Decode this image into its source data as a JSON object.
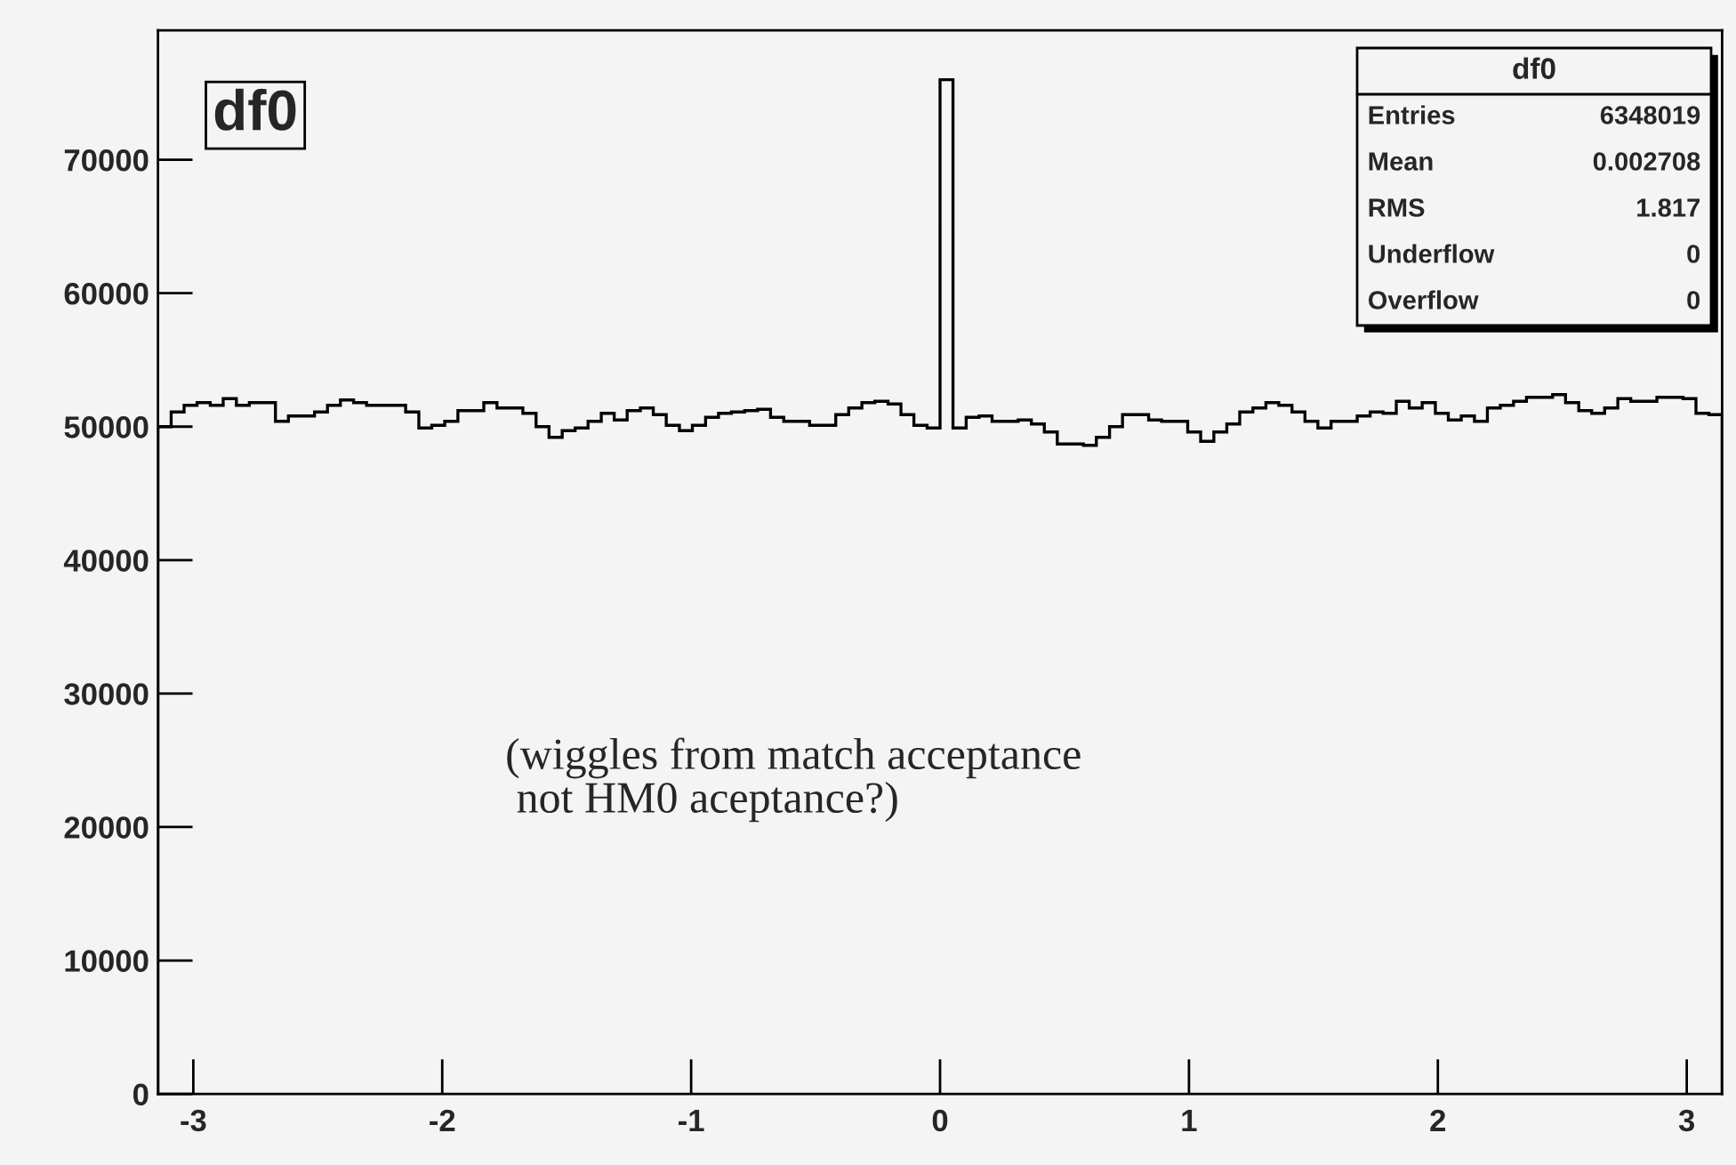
{
  "chart_data": {
    "type": "histogram",
    "title": "df0",
    "bins": [
      -3.142,
      -3.089,
      -3.037,
      -2.985,
      -2.932,
      -2.88,
      -2.827,
      -2.775,
      -2.723,
      -2.67,
      -2.618,
      -2.566,
      -2.513,
      -2.461,
      -2.409,
      -2.356,
      -2.304,
      -2.251,
      -2.199,
      -2.147,
      -2.094,
      -2.042,
      -1.99,
      -1.937,
      -1.885,
      -1.833,
      -1.78,
      -1.728,
      -1.676,
      -1.623,
      -1.571,
      -1.518,
      -1.466,
      -1.414,
      -1.361,
      -1.309,
      -1.257,
      -1.204,
      -1.152,
      -1.1,
      -1.047,
      -0.995,
      -0.942,
      -0.89,
      -0.838,
      -0.785,
      -0.733,
      -0.681,
      -0.628,
      -0.576,
      -0.524,
      -0.471,
      -0.419,
      -0.367,
      -0.314,
      -0.262,
      -0.209,
      -0.157,
      -0.105,
      -0.052,
      0,
      0.052,
      0.105,
      0.157,
      0.209,
      0.262,
      0.314,
      0.367,
      0.419,
      0.471,
      0.524,
      0.576,
      0.628,
      0.681,
      0.733,
      0.785,
      0.838,
      0.89,
      0.942,
      0.995,
      1.047,
      1.1,
      1.152,
      1.204,
      1.257,
      1.309,
      1.361,
      1.414,
      1.466,
      1.518,
      1.571,
      1.623,
      1.676,
      1.728,
      1.78,
      1.833,
      1.885,
      1.937,
      1.99,
      2.042,
      2.094,
      2.147,
      2.199,
      2.251,
      2.304,
      2.356,
      2.409,
      2.461,
      2.513,
      2.566,
      2.618,
      2.67,
      2.723,
      2.775,
      2.827,
      2.88,
      2.932,
      2.985,
      3.037,
      3.089,
      3.142
    ],
    "values": [
      50000,
      51100,
      51600,
      51800,
      51600,
      52100,
      51600,
      51800,
      51800,
      50400,
      50800,
      50800,
      51100,
      51600,
      52000,
      51800,
      51600,
      51600,
      51600,
      51100,
      49900,
      50100,
      50400,
      51200,
      51200,
      51800,
      51400,
      51400,
      51000,
      50000,
      49200,
      49700,
      49900,
      50400,
      51000,
      50500,
      51200,
      51400,
      50900,
      50100,
      49700,
      50100,
      50700,
      51000,
      51100,
      51200,
      51300,
      50700,
      50400,
      50400,
      50100,
      50100,
      50900,
      51400,
      51800,
      51900,
      51700,
      50900,
      50100,
      49900,
      76000,
      49900,
      50700,
      50800,
      50400,
      50400,
      50500,
      50200,
      49600,
      48700,
      48700,
      48600,
      49200,
      50000,
      50900,
      50900,
      50500,
      50400,
      50400,
      49600,
      48900,
      49600,
      50200,
      51100,
      51400,
      51800,
      51600,
      51100,
      50400,
      49900,
      50400,
      50400,
      50800,
      51100,
      51000,
      51900,
      51400,
      51800,
      51000,
      50500,
      50800,
      50400,
      51400,
      51600,
      51900,
      52200,
      52200,
      52400,
      51800,
      51200,
      51000,
      51400,
      52100,
      51900,
      51900,
      52200,
      52200,
      52100,
      51000,
      50900
    ],
    "color": "#000000",
    "xlim": [
      -3.142,
      3.142
    ],
    "xticks": [
      -3,
      -2,
      -1,
      0,
      1,
      2,
      3
    ],
    "ylim": [
      0,
      79700
    ],
    "yticks": [
      0,
      10000,
      20000,
      30000,
      40000,
      50000,
      60000,
      70000
    ],
    "grid": false,
    "annotations": [
      "df0",
      "Entries 6348019",
      "Mean 0.002708",
      "RMS 1.817",
      "Underflow 0",
      "Overflow 0",
      "(wiggles from match acceptance\n not HM0 aceptance?)"
    ]
  }
}
